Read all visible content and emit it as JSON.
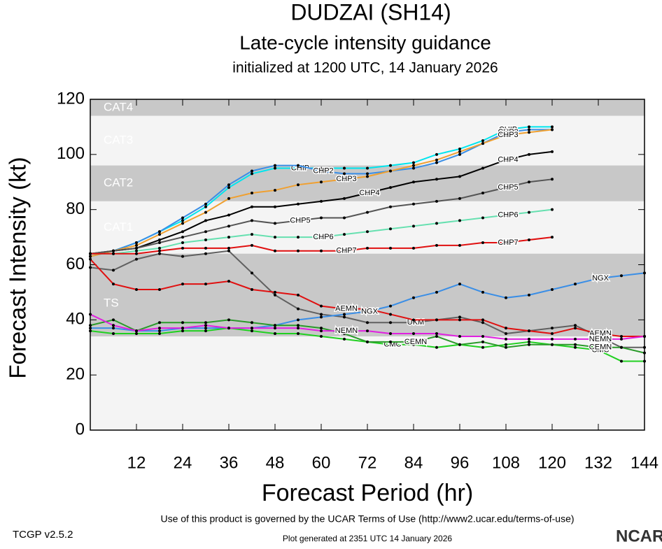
{
  "chart_data": {
    "type": "line",
    "title": "DUDZAI (SH14)",
    "subtitle": "Late-cycle intensity guidance",
    "initialized": "initialized at 1200 UTC, 14 January 2026",
    "ylabel": "Forecast Intensity (kt)",
    "xlabel": "Forecast Period (hr)",
    "xlim": [
      0,
      144
    ],
    "ylim": [
      0,
      120
    ],
    "xticks": [
      12,
      24,
      36,
      48,
      60,
      72,
      84,
      96,
      108,
      120,
      132,
      144
    ],
    "yticks": [
      0,
      20,
      40,
      60,
      80,
      100,
      120
    ],
    "bands": [
      {
        "label": "CAT4",
        "from": 114,
        "to": 120,
        "color": "#c8c8c8"
      },
      {
        "label": "CAT3",
        "from": 96,
        "to": 114,
        "color": "#f4f4f4"
      },
      {
        "label": "CAT2",
        "from": 83,
        "to": 96,
        "color": "#c8c8c8"
      },
      {
        "label": "CAT1",
        "from": 64,
        "to": 83,
        "color": "#f4f4f4"
      },
      {
        "label": "TS",
        "from": 34,
        "to": 64,
        "color": "#c8c8c8"
      }
    ],
    "x": [
      0,
      6,
      12,
      18,
      24,
      30,
      36,
      42,
      48,
      54,
      60,
      66,
      72,
      78,
      84,
      90,
      96,
      102,
      108,
      114,
      120,
      126,
      132,
      138,
      144
    ],
    "series": [
      {
        "name": "CHIP",
        "color": "#00e5ee",
        "values": [
          63,
          65,
          68,
          72,
          76,
          81,
          88,
          93,
          95,
          95,
          95,
          95,
          95,
          96,
          97,
          100,
          102,
          105,
          109,
          110,
          110,
          null,
          null,
          null,
          null
        ]
      },
      {
        "name": "CHP2",
        "color": "#3a8ee6",
        "values": [
          63,
          65,
          68,
          72,
          77,
          82,
          89,
          94,
          96,
          96,
          94,
          93,
          93,
          94,
          95,
          97,
          100,
          104,
          108,
          109,
          109,
          null,
          null,
          null,
          null
        ]
      },
      {
        "name": "CHP3",
        "color": "#f0a030",
        "values": [
          63,
          65,
          67,
          71,
          75,
          79,
          84,
          86,
          87,
          89,
          90,
          91,
          92,
          94,
          96,
          98,
          101,
          104,
          107,
          108,
          109,
          null,
          null,
          null,
          null
        ]
      },
      {
        "name": "CHP4",
        "color": "#000000",
        "values": [
          64,
          65,
          66,
          69,
          72,
          76,
          78,
          81,
          81,
          82,
          83,
          84,
          86,
          88,
          90,
          91,
          92,
          95,
          98,
          100,
          101,
          null,
          null,
          null,
          null
        ]
      },
      {
        "name": "CHP5",
        "color": "#555555",
        "values": [
          64,
          65,
          66,
          68,
          70,
          72,
          74,
          76,
          75,
          76,
          77,
          77,
          79,
          81,
          82,
          83,
          84,
          86,
          88,
          90,
          91,
          null,
          null,
          null,
          null
        ]
      },
      {
        "name": "CHP6",
        "color": "#66e0b0",
        "values": [
          64,
          64,
          65,
          66,
          68,
          69,
          70,
          71,
          70,
          70,
          70,
          71,
          72,
          73,
          74,
          75,
          76,
          77,
          78,
          79,
          80,
          null,
          null,
          null,
          null
        ]
      },
      {
        "name": "CHP7",
        "color": "#e01010",
        "values": [
          64,
          64,
          64,
          65,
          66,
          66,
          66,
          67,
          65,
          65,
          65,
          65,
          66,
          66,
          66,
          67,
          67,
          68,
          68,
          69,
          70,
          null,
          null,
          null,
          null
        ]
      },
      {
        "name": "UKM",
        "color": "#606060",
        "values": [
          59,
          58,
          62,
          64,
          63,
          64,
          65,
          57,
          49,
          44,
          42,
          41,
          39,
          39,
          39,
          40,
          41,
          39,
          35,
          36,
          37,
          38,
          34,
          30,
          30
        ]
      },
      {
        "name": "AEMN",
        "color": "#e01010",
        "values": [
          62,
          53,
          51,
          51,
          53,
          53,
          54,
          51,
          50,
          49,
          45,
          44,
          44,
          42,
          40,
          40,
          40,
          40,
          37,
          36,
          35,
          37,
          35,
          34,
          34
        ]
      },
      {
        "name": "NGX",
        "color": "#3a8ee6",
        "values": [
          37,
          37,
          36,
          36,
          37,
          37,
          37,
          37,
          38,
          40,
          41,
          42,
          43,
          45,
          48,
          50,
          53,
          50,
          48,
          49,
          51,
          53,
          55,
          56,
          57
        ]
      },
      {
        "name": "CMC",
        "color": "#20d020",
        "values": [
          36,
          35,
          35,
          35,
          36,
          36,
          37,
          36,
          35,
          35,
          34,
          33,
          32,
          31,
          31,
          30,
          31,
          30,
          31,
          32,
          31,
          30,
          29,
          25,
          25
        ]
      },
      {
        "name": "CEMN",
        "color": "#2a9a2a",
        "values": [
          38,
          40,
          36,
          39,
          39,
          39,
          40,
          39,
          38,
          38,
          37,
          35,
          32,
          32,
          32,
          34,
          31,
          32,
          30,
          31,
          31,
          31,
          30,
          30,
          28
        ]
      },
      {
        "name": "NEMN",
        "color": "#e020e0",
        "values": [
          42,
          38,
          36,
          37,
          37,
          38,
          37,
          37,
          37,
          37,
          36,
          36,
          36,
          35,
          35,
          35,
          34,
          34,
          33,
          33,
          33,
          33,
          33,
          33,
          34
        ]
      }
    ],
    "footer": "Use of this product is governed by the UCAR Terms of Use (http://www2.ucar.edu/terms-of-use)",
    "version": "TCGP v2.5.2",
    "generated": "Plot generated at 2351 UTC   14 January 2026",
    "logo": "NCAR"
  }
}
